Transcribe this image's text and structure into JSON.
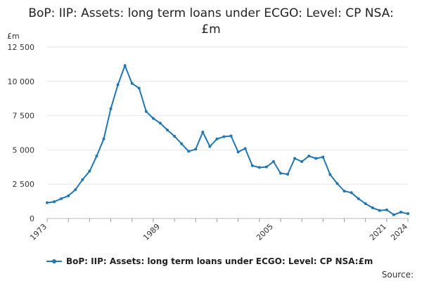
{
  "chart_data": {
    "type": "line",
    "title": "BoP: IIP: Assets: long term loans under ECGO: Level: CP NSA:£m",
    "ylabel": "£m",
    "ylim": [
      0,
      12500
    ],
    "yticks": [
      0,
      2500,
      5000,
      7500,
      10000,
      12500
    ],
    "ytick_labels": [
      "0",
      "2 500",
      "5 000",
      "7 500",
      "10 000",
      "12 500"
    ],
    "xlim": [
      1973,
      2024
    ],
    "xticks": [
      1973,
      1989,
      2005,
      2021,
      2024
    ],
    "grid": true,
    "color": "#1f77b4",
    "series": [
      {
        "name": "BoP: IIP: Assets: long term loans under ECGO: Level: CP NSA:£m",
        "x": [
          1973,
          1974,
          1975,
          1976,
          1977,
          1978,
          1979,
          1980,
          1981,
          1982,
          1983,
          1984,
          1985,
          1986,
          1987,
          1988,
          1989,
          1990,
          1991,
          1992,
          1993,
          1994,
          1995,
          1996,
          1997,
          1998,
          1999,
          2000,
          2001,
          2002,
          2003,
          2004,
          2005,
          2006,
          2007,
          2008,
          2009,
          2010,
          2011,
          2012,
          2013,
          2014,
          2015,
          2016,
          2017,
          2018,
          2019,
          2020,
          2021,
          2022,
          2023,
          2024
        ],
        "values": [
          1150,
          1220,
          1450,
          1650,
          2100,
          2830,
          3450,
          4550,
          5800,
          8000,
          9750,
          11150,
          9850,
          9500,
          7800,
          7300,
          6950,
          6450,
          6000,
          5450,
          4900,
          5050,
          6300,
          5250,
          5800,
          5970,
          6020,
          4850,
          5100,
          3850,
          3720,
          3760,
          4150,
          3300,
          3230,
          4380,
          4150,
          4550,
          4380,
          4480,
          3200,
          2550,
          2000,
          1880,
          1450,
          1080,
          780,
          580,
          630,
          270,
          460,
          350
        ]
      }
    ],
    "legend": "bottom-left",
    "source_label": "Source:"
  }
}
